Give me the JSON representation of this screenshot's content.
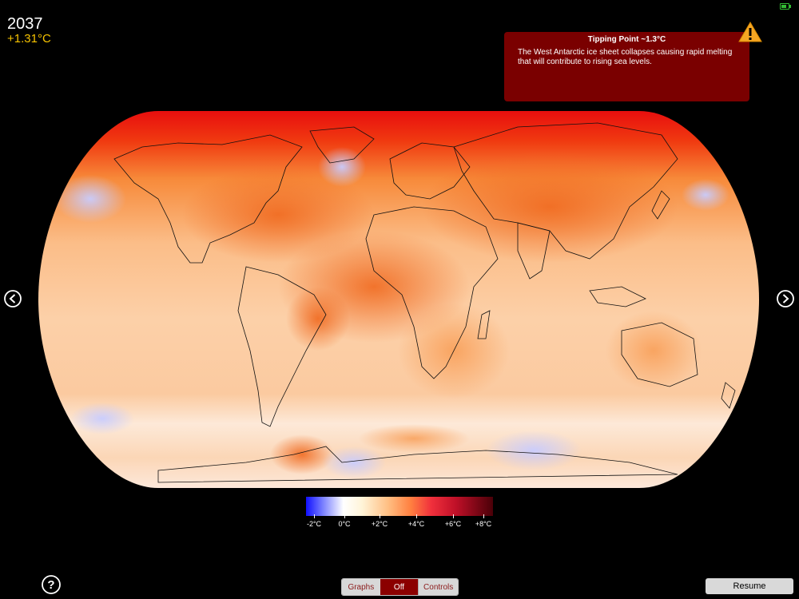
{
  "status": {
    "year": "2037",
    "anomaly": "+1.31°C",
    "anomaly_color": "#f5c200"
  },
  "tipping_point": {
    "title": "Tipping Point ~1.3°C",
    "body": "The West Antarctic ice sheet collapses causing rapid melting that will contribute to rising sea levels.",
    "icon": "warning-icon"
  },
  "map": {
    "projection": "robinson-like",
    "description_icon": "world-map"
  },
  "legend": {
    "labels": [
      "-2°C",
      "0°C",
      "+2°C",
      "+4°C",
      "+6°C",
      "+8°C"
    ],
    "values": [
      -2,
      0,
      2,
      4,
      6,
      8
    ]
  },
  "navigation": {
    "prev_icon": "chevron-left-icon",
    "next_icon": "chevron-right-icon"
  },
  "help": {
    "label": "?"
  },
  "controls": {
    "segments": [
      "Graphs",
      "Off",
      "Controls"
    ],
    "selected": "Off",
    "accent": "#8b0000"
  },
  "resume_label": "Resume"
}
